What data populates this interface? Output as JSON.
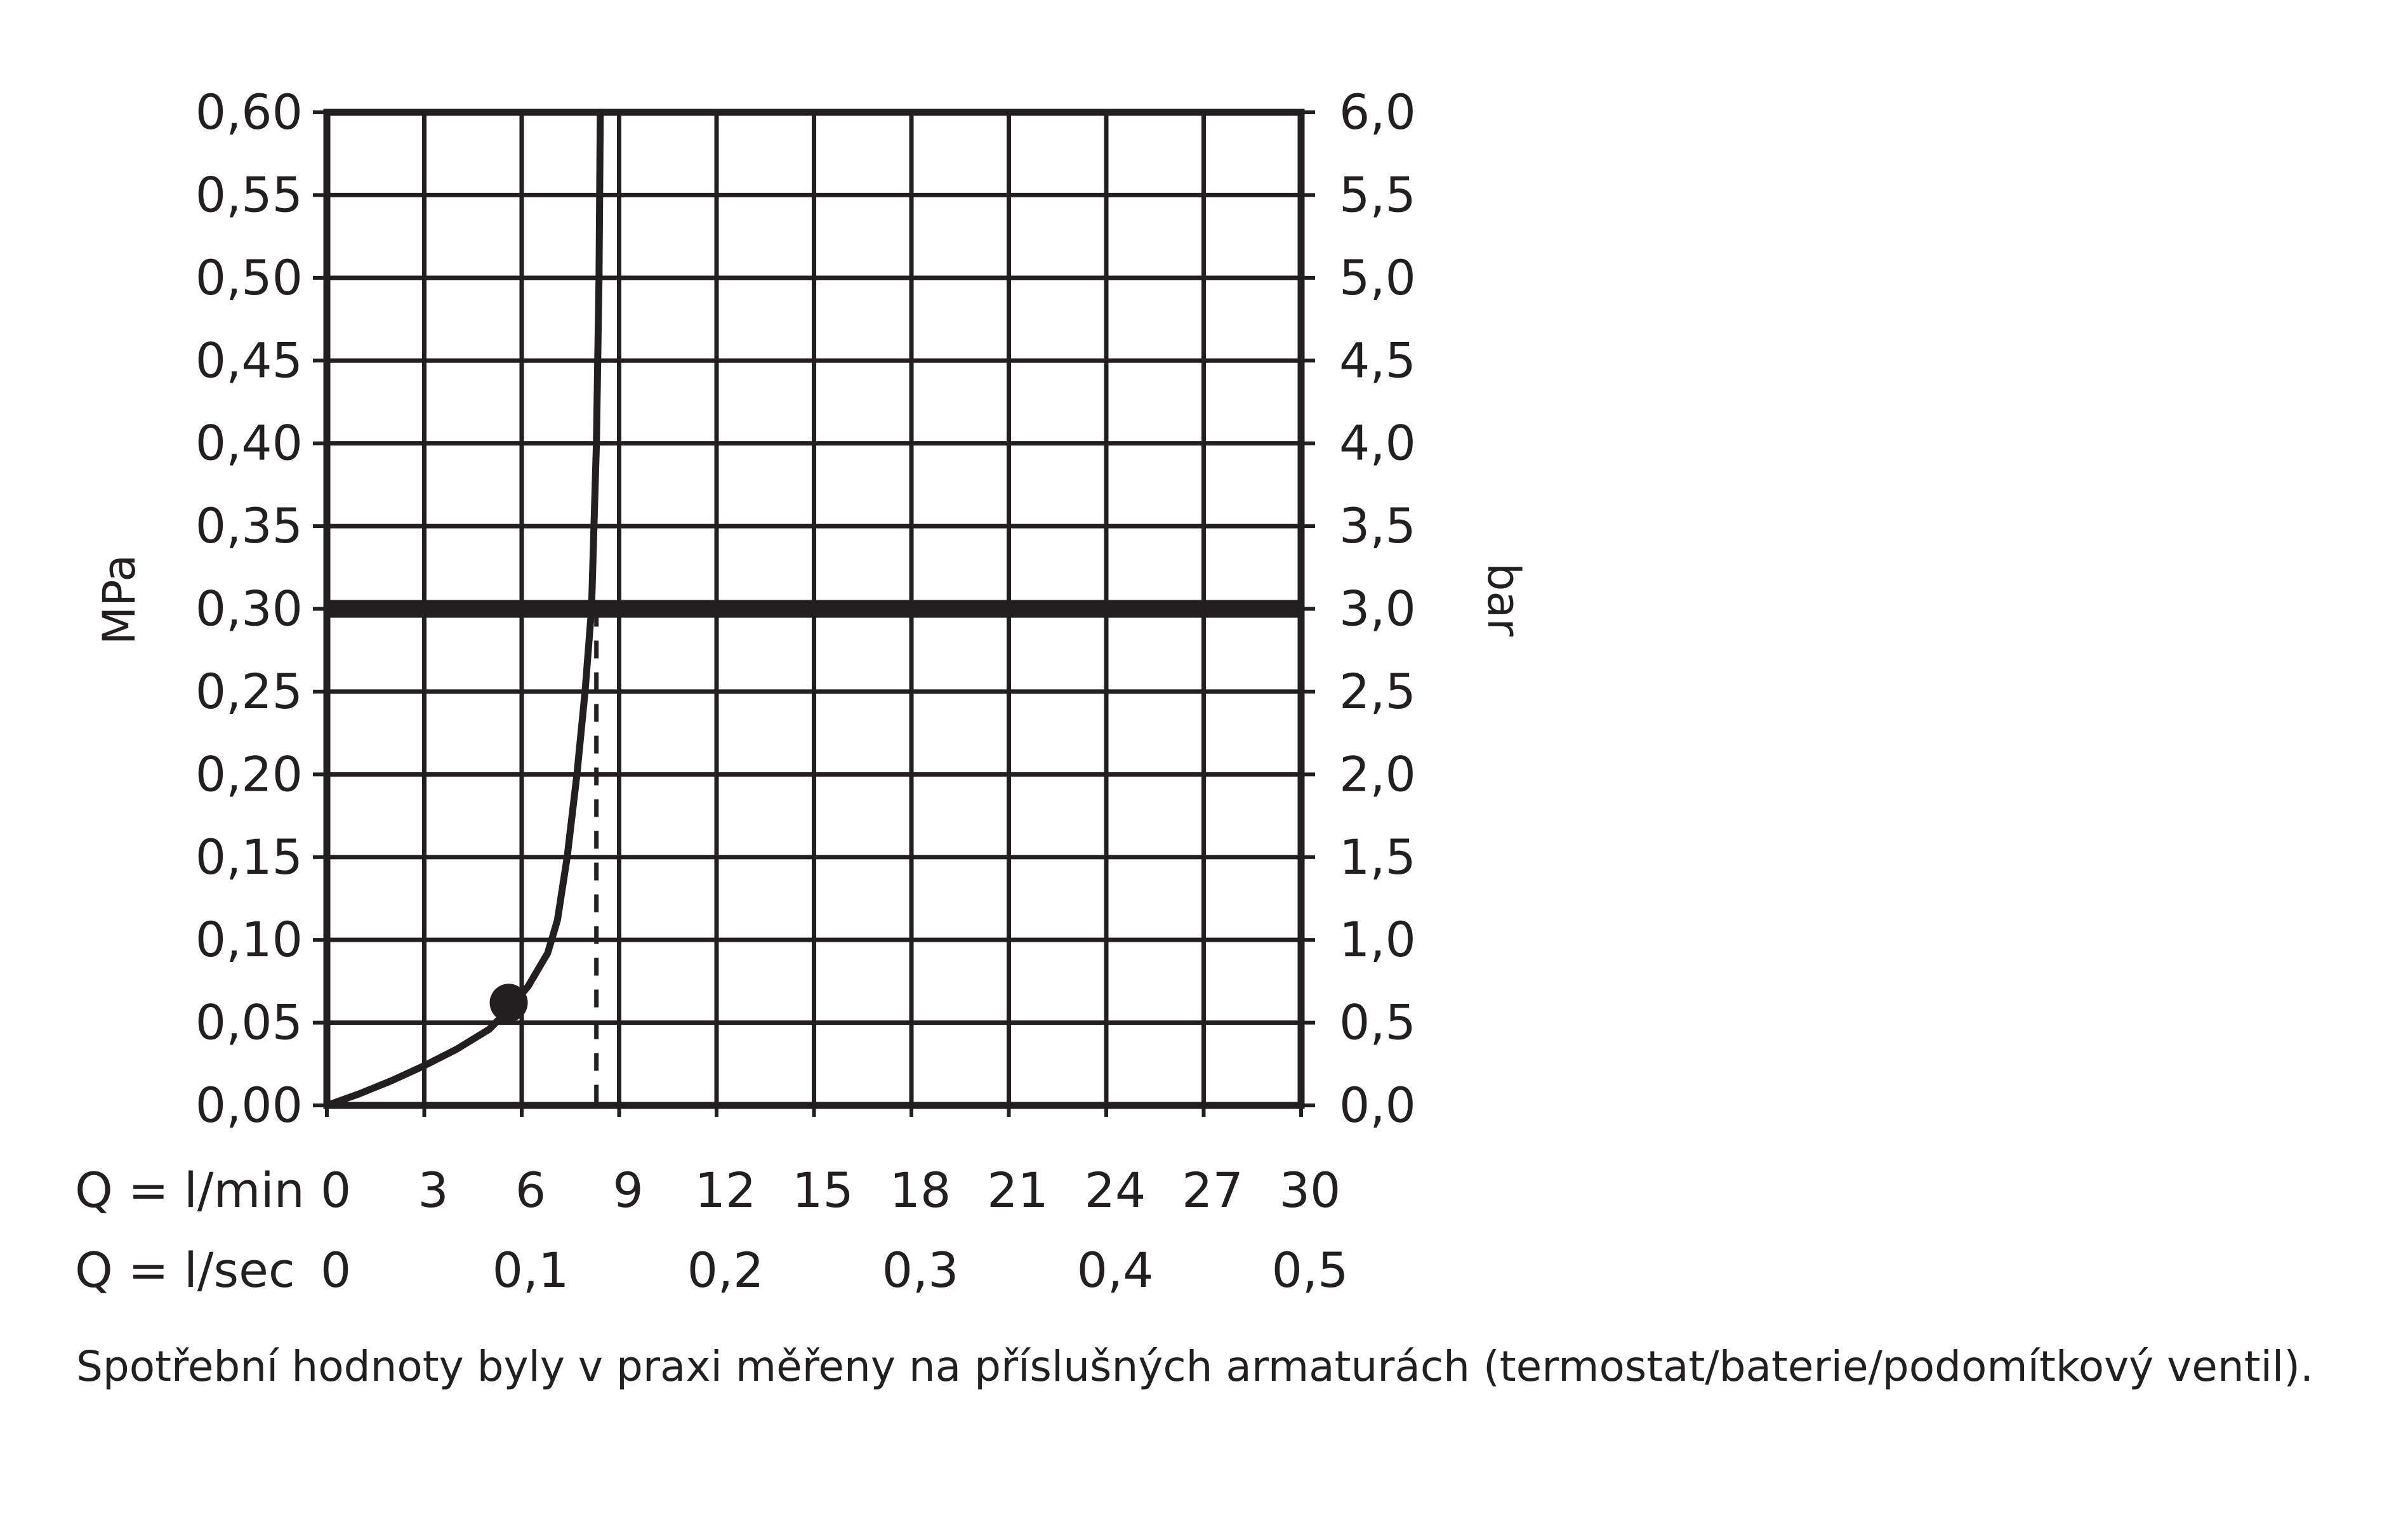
{
  "chart_data": {
    "type": "line",
    "ylabel_left": "MPa",
    "ylabel_right": "bar",
    "x_row_labels": [
      "Q = l/min",
      "Q = l/sec"
    ],
    "xlim": [
      0,
      30
    ],
    "ylim": [
      0,
      0.6
    ],
    "y_ticks_left": [
      "0,00",
      "0,05",
      "0,10",
      "0,15",
      "0,20",
      "0,25",
      "0,30",
      "0,35",
      "0,40",
      "0,45",
      "0,50",
      "0,55",
      "0,60"
    ],
    "y_ticks_right": [
      "0,0",
      "0,5",
      "1,0",
      "1,5",
      "2,0",
      "2,5",
      "3,0",
      "3,5",
      "4,0",
      "4,5",
      "5,0",
      "5,5",
      "6,0"
    ],
    "x_ticks_lmin": [
      {
        "label": "0",
        "value": 0
      },
      {
        "label": "3",
        "value": 3
      },
      {
        "label": "6",
        "value": 6
      },
      {
        "label": "9",
        "value": 9
      },
      {
        "label": "12",
        "value": 12
      },
      {
        "label": "15",
        "value": 15
      },
      {
        "label": "18",
        "value": 18
      },
      {
        "label": "21",
        "value": 21
      },
      {
        "label": "24",
        "value": 24
      },
      {
        "label": "27",
        "value": 27
      },
      {
        "label": "30",
        "value": 30
      }
    ],
    "x_ticks_lsec": [
      {
        "label": "0",
        "value": 0
      },
      {
        "label": "0,1",
        "value": 6
      },
      {
        "label": "0,2",
        "value": 12
      },
      {
        "label": "0,3",
        "value": 18
      },
      {
        "label": "0,4",
        "value": 24
      },
      {
        "label": "0,5",
        "value": 30
      }
    ],
    "grid": true,
    "series": [
      {
        "points": [
          [
            0,
            0
          ],
          [
            1,
            0.007
          ],
          [
            2,
            0.015
          ],
          [
            3,
            0.024
          ],
          [
            4,
            0.034
          ],
          [
            5,
            0.046
          ],
          [
            5.6,
            0.058
          ],
          [
            6.2,
            0.072
          ],
          [
            6.8,
            0.092
          ],
          [
            7.1,
            0.112
          ],
          [
            7.4,
            0.15
          ],
          [
            7.7,
            0.2
          ],
          [
            7.95,
            0.25
          ],
          [
            8.15,
            0.3
          ],
          [
            8.3,
            0.4
          ],
          [
            8.38,
            0.5
          ],
          [
            8.42,
            0.6
          ]
        ]
      }
    ],
    "marker_point": [
      5.6,
      0.062
    ],
    "reference_pressure": 0.3,
    "reference_flow": 8.3
  },
  "caption": "Spotřební hodnoty byly v praxi měřeny na příslušných armaturách (termostat/baterie/podomítkový ventil)."
}
